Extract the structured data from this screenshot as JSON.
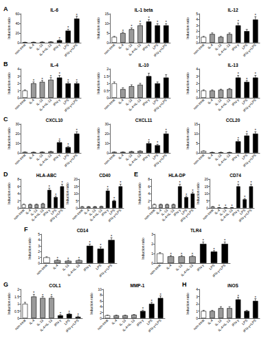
{
  "chart_data": [
    {
      "type": "bar",
      "panel": "A",
      "title": "IL-6",
      "ylabel": "Induction ratio",
      "categories": [
        "non-treat",
        "IL-4",
        "IL-13",
        "IL-4+IL-13",
        "IFN-γ",
        "LPS",
        "IFN-γ+LPS"
      ],
      "values": [
        1,
        1.2,
        1.5,
        2,
        5,
        25,
        50
      ],
      "errors": [
        0.1,
        0.2,
        0.2,
        0.3,
        1,
        3,
        5
      ],
      "starred": [
        false,
        false,
        false,
        false,
        true,
        true,
        true
      ],
      "annotation": "*",
      "colors": [
        "#ffffff",
        "#9a9a9a",
        "#9a9a9a",
        "#9a9a9a",
        "#000000",
        "#000000",
        "#000000"
      ],
      "ylim": [
        0,
        60
      ],
      "yticks": [
        0,
        20,
        40,
        60
      ],
      "grid": false
    },
    {
      "type": "bar",
      "title": "IL-1 beta",
      "ylabel": "Induction ratio",
      "categories": [
        "non-treat",
        "IL-4",
        "IL-13",
        "IL-4+IL-13",
        "IFN-γ",
        "LPS",
        "IFN-γ+LPS"
      ],
      "values": [
        3,
        5,
        7,
        9,
        11,
        9,
        9
      ],
      "errors": [
        0.3,
        0.5,
        0.7,
        0.9,
        1,
        0.9,
        0.9
      ],
      "starred": [
        false,
        true,
        true,
        true,
        true,
        true,
        true
      ],
      "annotation": "*",
      "colors": [
        "#ffffff",
        "#9a9a9a",
        "#9a9a9a",
        "#9a9a9a",
        "#000000",
        "#000000",
        "#000000"
      ],
      "ylim": [
        0,
        15
      ],
      "yticks": [
        0,
        5,
        10,
        15
      ],
      "grid": false
    },
    {
      "type": "bar",
      "title": "IL-12",
      "ylabel": "Induction ratio",
      "categories": [
        "non-treat",
        "IL-4",
        "IL-13",
        "IL-4+IL-13",
        "IFN-γ",
        "LPS",
        "IFN-γ+LPS"
      ],
      "values": [
        1,
        1.5,
        1,
        1.5,
        3,
        2,
        4
      ],
      "errors": [
        0.1,
        0.2,
        0.1,
        0.2,
        0.4,
        0.3,
        0.5
      ],
      "starred": [
        false,
        false,
        false,
        false,
        true,
        false,
        true
      ],
      "annotation": "*",
      "colors": [
        "#ffffff",
        "#9a9a9a",
        "#9a9a9a",
        "#9a9a9a",
        "#000000",
        "#000000",
        "#000000"
      ],
      "ylim": [
        0,
        5
      ],
      "yticks": [
        0,
        1,
        2,
        3,
        4,
        5
      ],
      "grid": false
    },
    {
      "type": "bar",
      "panel": "B",
      "title": "IL-4",
      "ylabel": "Induction ratio",
      "categories": [
        "non-treat",
        "IL-4",
        "IL-13",
        "IL-4+IL-13",
        "IFN-γ",
        "LPS",
        "IFN-γ+LPS"
      ],
      "values": [
        1,
        2,
        2.2,
        2.5,
        2.8,
        2,
        2
      ],
      "errors": [
        0.1,
        0.2,
        0.2,
        0.3,
        0.3,
        0.2,
        0.2
      ],
      "starred": [
        false,
        true,
        true,
        true,
        true,
        true,
        true
      ],
      "annotation": "*",
      "colors": [
        "#ffffff",
        "#9a9a9a",
        "#9a9a9a",
        "#9a9a9a",
        "#000000",
        "#000000",
        "#000000"
      ],
      "ylim": [
        0,
        4
      ],
      "yticks": [
        0,
        1,
        2,
        3,
        4
      ],
      "grid": false
    },
    {
      "type": "bar",
      "title": "IL-10",
      "ylabel": "Induction ratio",
      "categories": [
        "non-treat",
        "IL-4",
        "IL-13",
        "IL-4+IL-13",
        "IFN-γ",
        "LPS",
        "IFN-γ+LPS"
      ],
      "values": [
        1,
        0.6,
        0.8,
        0.9,
        1.5,
        1,
        1.4
      ],
      "errors": [
        0.1,
        0.1,
        0.1,
        0.1,
        0.2,
        0.1,
        0.2
      ],
      "starred": [
        false,
        false,
        false,
        false,
        false,
        false,
        false
      ],
      "annotation": "*",
      "colors": [
        "#ffffff",
        "#9a9a9a",
        "#9a9a9a",
        "#9a9a9a",
        "#000000",
        "#000000",
        "#000000"
      ],
      "ylim": [
        0,
        2
      ],
      "yticks": [
        0,
        0.5,
        1,
        1.5,
        2
      ],
      "grid": false
    },
    {
      "type": "bar",
      "title": "IL-13",
      "ylabel": "Induction ratio",
      "categories": [
        "non-treat",
        "IL-4",
        "IL-13",
        "IL-4+IL-13",
        "IFN-γ",
        "LPS",
        "IFN-γ+LPS"
      ],
      "values": [
        1,
        1,
        1.1,
        1.2,
        2.8,
        2.2,
        2.8
      ],
      "errors": [
        0.1,
        0.1,
        0.1,
        0.1,
        0.3,
        0.2,
        0.3
      ],
      "starred": [
        false,
        false,
        false,
        false,
        true,
        true,
        true
      ],
      "annotation": "*",
      "colors": [
        "#ffffff",
        "#9a9a9a",
        "#9a9a9a",
        "#9a9a9a",
        "#000000",
        "#000000",
        "#000000"
      ],
      "ylim": [
        0,
        4
      ],
      "yticks": [
        0,
        1,
        2,
        3,
        4
      ],
      "grid": false
    },
    {
      "type": "bar",
      "panel": "C",
      "title": "CXCL10",
      "ylabel": "Induction ratio",
      "categories": [
        "non-treat",
        "IL-4",
        "IL-13",
        "IL-4+IL-13",
        "IFN-γ",
        "LPS",
        "IFN-γ+LPS"
      ],
      "values": [
        1,
        0.8,
        1,
        1.5,
        11,
        6,
        20
      ],
      "errors": [
        0.1,
        0.1,
        0.1,
        0.2,
        1.5,
        1,
        2
      ],
      "starred": [
        false,
        false,
        false,
        false,
        true,
        true,
        true
      ],
      "annotation": "*",
      "colors": [
        "#ffffff",
        "#9a9a9a",
        "#9a9a9a",
        "#9a9a9a",
        "#000000",
        "#000000",
        "#000000"
      ],
      "ylim": [
        0,
        30
      ],
      "yticks": [
        0,
        10,
        20,
        30
      ],
      "grid": false
    },
    {
      "type": "bar",
      "title": "CXCL11",
      "ylabel": "Induction ratio",
      "categories": [
        "non-treat",
        "IL-4",
        "IL-13",
        "IL-4+IL-13",
        "IFN-γ",
        "LPS",
        "IFN-γ+LPS"
      ],
      "values": [
        1,
        1,
        1.5,
        2,
        10,
        8,
        20
      ],
      "errors": [
        0.1,
        0.1,
        0.2,
        0.2,
        1.5,
        1,
        2
      ],
      "starred": [
        false,
        false,
        false,
        false,
        true,
        true,
        true
      ],
      "annotation": "*",
      "colors": [
        "#ffffff",
        "#9a9a9a",
        "#9a9a9a",
        "#9a9a9a",
        "#000000",
        "#000000",
        "#000000"
      ],
      "ylim": [
        0,
        30
      ],
      "yticks": [
        0,
        10,
        20,
        30
      ],
      "grid": false
    },
    {
      "type": "bar",
      "title": "CCL20",
      "ylabel": "Induction ratio",
      "categories": [
        "non-treat",
        "IL-4",
        "IL-13",
        "IL-4+IL-13",
        "IFN-γ",
        "LPS",
        "IFN-γ+LPS"
      ],
      "values": [
        1,
        0.3,
        0.3,
        0.3,
        6,
        9,
        10
      ],
      "errors": [
        0.1,
        0.1,
        0.1,
        0.1,
        0.8,
        1,
        1
      ],
      "starred": [
        false,
        false,
        false,
        false,
        true,
        true,
        true
      ],
      "annotation": "*",
      "colors": [
        "#ffffff",
        "#9a9a9a",
        "#9a9a9a",
        "#9a9a9a",
        "#000000",
        "#000000",
        "#000000"
      ],
      "ylim": [
        0,
        15
      ],
      "yticks": [
        0,
        5,
        10,
        15
      ],
      "grid": false
    },
    {
      "type": "bar",
      "panel": "D",
      "title": "HLA-ABC",
      "ylabel": "Induction ratio",
      "categories": [
        "non-treat",
        "IL-4",
        "IL-13",
        "IL-4+IL-13",
        "IFN-γ",
        "LPS",
        "IFN-γ+LPS"
      ],
      "values": [
        1,
        1,
        1,
        1.2,
        5,
        3,
        6
      ],
      "errors": [
        0.1,
        0.1,
        0.1,
        0.1,
        0.5,
        0.3,
        0.6
      ],
      "starred": [
        false,
        false,
        false,
        false,
        true,
        true,
        true
      ],
      "annotation": "*",
      "colors": [
        "#ffffff",
        "#9a9a9a",
        "#9a9a9a",
        "#9a9a9a",
        "#000000",
        "#000000",
        "#000000"
      ],
      "ylim": [
        0,
        8
      ],
      "yticks": [
        0,
        2,
        4,
        6,
        8
      ],
      "grid": false
    },
    {
      "type": "bar",
      "title": "CD40",
      "ylabel": "Induction ratio",
      "categories": [
        "non-treat",
        "IL-4",
        "IL-13",
        "IL-4+IL-13",
        "IFN-γ",
        "LPS",
        "IFN-γ+LPS"
      ],
      "values": [
        1,
        1,
        1,
        1.2,
        12,
        5,
        15
      ],
      "errors": [
        0.1,
        0.1,
        0.1,
        0.1,
        1.2,
        0.5,
        1.5
      ],
      "starred": [
        false,
        false,
        false,
        false,
        true,
        true,
        true
      ],
      "annotation": "*",
      "colors": [
        "#ffffff",
        "#9a9a9a",
        "#9a9a9a",
        "#9a9a9a",
        "#000000",
        "#000000",
        "#000000"
      ],
      "ylim": [
        0,
        20
      ],
      "yticks": [
        0,
        5,
        10,
        15,
        20
      ],
      "grid": false
    },
    {
      "type": "bar",
      "panel": "E",
      "title": "HLA-DP",
      "ylabel": "Induction ratio",
      "categories": [
        "non-treat",
        "IL-4",
        "IL-13",
        "IL-4+IL-13",
        "IFN-γ",
        "LPS",
        "IFN-γ+LPS"
      ],
      "values": [
        1,
        1,
        1,
        1,
        6,
        3,
        4
      ],
      "errors": [
        0.1,
        0.1,
        0.1,
        0.1,
        0.6,
        0.3,
        0.4
      ],
      "starred": [
        false,
        false,
        false,
        false,
        true,
        true,
        true
      ],
      "annotation": "*",
      "colors": [
        "#ffffff",
        "#9a9a9a",
        "#9a9a9a",
        "#9a9a9a",
        "#000000",
        "#000000",
        "#000000"
      ],
      "ylim": [
        0,
        8
      ],
      "yticks": [
        0,
        2,
        4,
        6,
        8
      ],
      "grid": false
    },
    {
      "type": "bar",
      "title": "CD74",
      "ylabel": "Induction ratio",
      "categories": [
        "non-treat",
        "IL-4",
        "IL-13",
        "IL-4+IL-13",
        "IFN-γ",
        "LPS",
        "IFN-γ+LPS"
      ],
      "values": [
        1,
        0.3,
        0.3,
        0.3,
        15,
        6,
        15
      ],
      "errors": [
        0.1,
        0.1,
        0.1,
        0.1,
        1.5,
        0.6,
        1.5
      ],
      "starred": [
        false,
        true,
        true,
        true,
        true,
        true,
        true
      ],
      "annotation": "*",
      "colors": [
        "#ffffff",
        "#9a9a9a",
        "#9a9a9a",
        "#9a9a9a",
        "#000000",
        "#000000",
        "#000000"
      ],
      "ylim": [
        0,
        20
      ],
      "yticks": [
        0,
        5,
        10,
        15,
        20
      ],
      "grid": false
    },
    {
      "type": "bar",
      "panel": "F",
      "title": "CD14",
      "ylabel": "Induction ratio",
      "categories": [
        "non-treat",
        "IL-4",
        "IL-13",
        "IL-4+IL-13",
        "IFN-γ",
        "LPS",
        "IFN-γ+LPS"
      ],
      "values": [
        1,
        0.5,
        0.4,
        0.5,
        3,
        2.5,
        4
      ],
      "errors": [
        0.1,
        0.1,
        0.1,
        0.1,
        0.3,
        0.3,
        0.4
      ],
      "starred": [
        false,
        true,
        true,
        true,
        true,
        true,
        true
      ],
      "annotation": "*",
      "colors": [
        "#ffffff",
        "#9a9a9a",
        "#9a9a9a",
        "#9a9a9a",
        "#000000",
        "#000000",
        "#000000"
      ],
      "ylim": [
        0,
        5
      ],
      "yticks": [
        0,
        1,
        2,
        3,
        4,
        5
      ],
      "grid": false
    },
    {
      "type": "bar",
      "title": "TLR4",
      "ylabel": "Induction ratio",
      "categories": [
        "non-treat",
        "IL-4",
        "IL-13",
        "IL-4+IL-13",
        "IFN-γ",
        "LPS",
        "IFN-γ+LPS"
      ],
      "values": [
        1,
        0.7,
        0.7,
        0.7,
        2,
        1.2,
        2
      ],
      "errors": [
        0.1,
        0.1,
        0.1,
        0.1,
        0.2,
        0.1,
        0.2
      ],
      "starred": [
        false,
        true,
        true,
        true,
        true,
        true,
        true
      ],
      "annotation": "*",
      "colors": [
        "#ffffff",
        "#9a9a9a",
        "#9a9a9a",
        "#9a9a9a",
        "#000000",
        "#000000",
        "#000000"
      ],
      "ylim": [
        0,
        3
      ],
      "yticks": [
        0,
        1,
        2,
        3
      ],
      "grid": false
    },
    {
      "type": "bar",
      "panel": "G",
      "title": "COL1",
      "ylabel": "Induction ratio",
      "categories": [
        "non-treat",
        "IL-4",
        "IL-13",
        "IL-4+IL-13",
        "IFN-γ",
        "LPS",
        "IFN-γ+LPS"
      ],
      "values": [
        1,
        1.5,
        1.4,
        1.4,
        0.2,
        0.3,
        0.1
      ],
      "errors": [
        0.1,
        0.15,
        0.1,
        0.1,
        0.05,
        0.05,
        0.05
      ],
      "starred": [
        false,
        true,
        true,
        true,
        true,
        true,
        true
      ],
      "annotation": "*",
      "colors": [
        "#ffffff",
        "#9a9a9a",
        "#9a9a9a",
        "#9a9a9a",
        "#000000",
        "#000000",
        "#000000"
      ],
      "ylim": [
        0,
        2
      ],
      "yticks": [
        0,
        0.5,
        1,
        1.5,
        2
      ],
      "grid": false
    },
    {
      "type": "bar",
      "title": "MMP-1",
      "ylabel": "Induction ratio",
      "categories": [
        "non-treat",
        "IL-4",
        "IL-13",
        "IL-4+IL-13",
        "IFN-γ",
        "LPS",
        "IFN-γ+LPS"
      ],
      "values": [
        1,
        1,
        1,
        1.2,
        2.5,
        5,
        7
      ],
      "errors": [
        0.1,
        0.1,
        0.1,
        0.1,
        0.3,
        0.5,
        0.7
      ],
      "starred": [
        false,
        false,
        false,
        false,
        true,
        true,
        true
      ],
      "annotation": "*",
      "colors": [
        "#ffffff",
        "#9a9a9a",
        "#9a9a9a",
        "#9a9a9a",
        "#000000",
        "#000000",
        "#000000"
      ],
      "ylim": [
        0,
        10
      ],
      "yticks": [
        0,
        2,
        4,
        6,
        8,
        10
      ],
      "grid": false
    },
    {
      "type": "bar",
      "panel": "H",
      "title": "iNOS",
      "ylabel": "Induction ratio",
      "categories": [
        "non-treat",
        "IL-4",
        "IL-13",
        "IL-4+IL-13",
        "IFN-γ",
        "LPS",
        "IFN-γ+LPS"
      ],
      "values": [
        1,
        1,
        1.4,
        1.4,
        2.6,
        1,
        2.4
      ],
      "errors": [
        0.1,
        0.1,
        0.2,
        0.2,
        0.3,
        0.1,
        0.3
      ],
      "starred": [
        false,
        false,
        false,
        false,
        true,
        false,
        true
      ],
      "annotation": "*",
      "colors": [
        "#ffffff",
        "#9a9a9a",
        "#9a9a9a",
        "#9a9a9a",
        "#000000",
        "#000000",
        "#000000"
      ],
      "ylim": [
        0,
        4
      ],
      "yticks": [
        0,
        1,
        2,
        3,
        4
      ],
      "grid": false
    }
  ]
}
